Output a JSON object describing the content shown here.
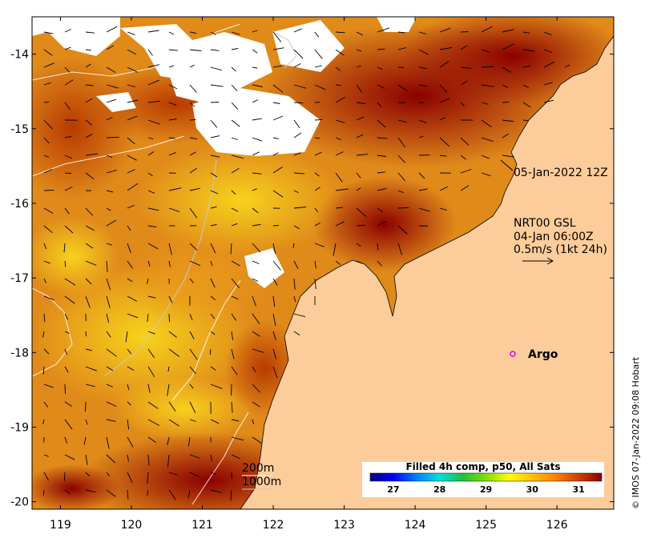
{
  "map": {
    "lon_ticks": [
      "119",
      "120",
      "121",
      "122",
      "123",
      "124",
      "125",
      "126"
    ],
    "lat_ticks": [
      "-14",
      "-15",
      "-16",
      "-17",
      "-18",
      "-19",
      "-20"
    ],
    "lon_range": [
      118.6,
      126.8
    ],
    "lat_range": [
      -20.1,
      -13.5
    ],
    "colors": {
      "land": "#fccc9a",
      "cloud": "#ffffff",
      "coast": "#000000",
      "isobath": "#ffffff"
    }
  },
  "annotations": {
    "snapshot_time": "05-Jan-2022 12Z",
    "current_source": "NRT00 GSL",
    "current_time": "04-Jan 06:00Z",
    "current_scale": "0.5m/s (1kt 24h)",
    "argo_label": "Argo",
    "isobath_200": "200m",
    "isobath_1000": "1000m"
  },
  "colorbar": {
    "title": "Filled 4h comp, p50, All Sats",
    "ticks": [
      "27",
      "28",
      "29",
      "30",
      "31"
    ],
    "stops": [
      "#00007f",
      "#0000ff",
      "#0080ff",
      "#00e0e0",
      "#20c040",
      "#80e000",
      "#ffff00",
      "#ffc000",
      "#ff8000",
      "#d04000",
      "#8b0000"
    ],
    "range": [
      26.5,
      31.5
    ]
  },
  "credit": "© IMOS 07-Jan-2022 09:08 Hobart"
}
